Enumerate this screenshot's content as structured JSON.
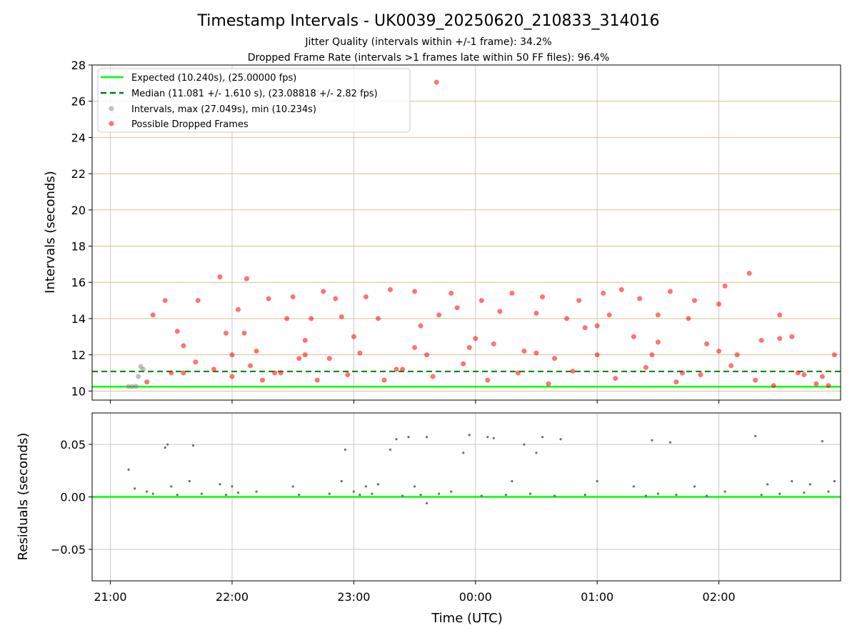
{
  "chart_data": [
    {
      "type": "scatter",
      "title": "Timestamp Intervals - UK0039_20250620_210833_314016",
      "subtitle_lines": [
        "Jitter Quality (intervals within +/-1 frame): 34.2%",
        "Dropped Frame Rate (intervals >1 frames late within 50 FF files): 96.4%"
      ],
      "xlabel": "",
      "ylabel": "Intervals (seconds)",
      "ylim": [
        9.5,
        28
      ],
      "yticks": [
        10,
        12,
        14,
        16,
        18,
        20,
        22,
        24,
        26,
        28
      ],
      "ytick_labels": [
        "10",
        "12",
        "14",
        "16",
        "18",
        "20",
        "22",
        "24",
        "26",
        "28"
      ],
      "x_unit": "hours since 21:00 UTC",
      "xlim": [
        -0.15,
        6.0
      ],
      "grid": true,
      "legend_position": "top-left",
      "legend": [
        "Expected (10.240s), (25.00000 fps)",
        "Median (11.081 +/- 1.610 s), (23.08818 +/- 2.82 fps)",
        "Intervals, max (27.049s), min (10.234s)",
        "Possible Dropped Frames"
      ],
      "reference_lines": {
        "expected": 10.24,
        "median": 11.081
      },
      "colors": {
        "expected": "#00ff00",
        "median": "#008000",
        "intervals": "#808080",
        "dropped": "#ff0000",
        "hgrid": "#d4c48a",
        "vgrid": "#c8c8c8"
      },
      "series": [
        {
          "name": "Intervals, max (27.049s), min (10.234s)",
          "x": [
            0.15,
            0.18,
            0.21,
            0.23,
            0.25,
            0.27
          ],
          "y": [
            10.25,
            10.25,
            10.26,
            10.8,
            11.35,
            11.2
          ]
        },
        {
          "name": "Possible Dropped Frames",
          "x": [
            0.35,
            0.45,
            0.55,
            0.6,
            0.72,
            0.9,
            0.95,
            1.0,
            1.05,
            1.12,
            1.2,
            1.3,
            1.35,
            1.45,
            1.5,
            1.6,
            1.65,
            1.75,
            1.8,
            1.85,
            1.9,
            2.05,
            2.1,
            2.2,
            2.3,
            2.35,
            2.5,
            2.55,
            2.6,
            2.7,
            2.8,
            2.85,
            2.95,
            3.05,
            3.15,
            3.2,
            3.3,
            3.4,
            3.5,
            3.55,
            3.65,
            3.75,
            3.85,
            3.9,
            4.0,
            4.05,
            4.1,
            4.2,
            4.3,
            4.35,
            4.45,
            4.5,
            4.6,
            4.7,
            4.75,
            4.8,
            4.9,
            5.0,
            5.05,
            5.15,
            5.25,
            5.35,
            5.5,
            5.6,
            5.7,
            5.85,
            5.95,
            0.3,
            0.5,
            0.7,
            0.85,
            1.0,
            1.15,
            1.25,
            1.4,
            1.55,
            1.7,
            1.95,
            2.25,
            2.4,
            2.65,
            2.9,
            3.1,
            3.35,
            3.6,
            3.8,
            4.15,
            4.4,
            4.65,
            4.85,
            5.1,
            5.3,
            5.45,
            5.65,
            5.8,
            5.9,
            0.6,
            1.1,
            1.6,
            2.0,
            2.5,
            3.0,
            3.5,
            4.0,
            4.5,
            5.0,
            5.5,
            2.68
          ],
          "y": [
            14.2,
            15.0,
            13.3,
            11.0,
            15.0,
            16.3,
            13.2,
            12.0,
            14.5,
            16.2,
            12.2,
            15.1,
            11.0,
            14.0,
            15.2,
            12.8,
            14.0,
            15.5,
            11.8,
            15.1,
            14.1,
            12.1,
            15.2,
            14.0,
            15.6,
            11.2,
            15.5,
            13.6,
            12.0,
            14.2,
            15.4,
            14.6,
            12.4,
            15.0,
            12.6,
            14.4,
            15.4,
            12.2,
            14.3,
            15.2,
            11.8,
            14.0,
            15.0,
            13.5,
            12.0,
            15.4,
            14.2,
            15.6,
            13.0,
            15.1,
            12.0,
            14.2,
            15.5,
            11.0,
            14.0,
            15.0,
            12.6,
            14.8,
            15.8,
            12.0,
            16.5,
            12.8,
            14.2,
            13.0,
            10.9,
            10.8,
            12.0,
            10.5,
            11.0,
            11.6,
            11.2,
            10.8,
            11.4,
            10.6,
            11.0,
            11.8,
            10.6,
            10.9,
            10.6,
            11.2,
            10.8,
            11.5,
            10.6,
            11.0,
            10.4,
            11.1,
            10.7,
            11.3,
            10.5,
            10.9,
            11.4,
            10.6,
            10.3,
            11.0,
            10.4,
            10.3,
            12.5,
            13.2,
            12.0,
            13.0,
            12.4,
            12.9,
            12.1,
            13.6,
            12.7,
            12.2,
            12.9,
            27.05
          ]
        }
      ]
    },
    {
      "type": "scatter",
      "title": "",
      "xlabel": "Time (UTC)",
      "ylabel": "Residuals (seconds)",
      "ylim": [
        -0.08,
        0.08
      ],
      "yticks": [
        -0.05,
        0.0,
        0.05
      ],
      "ytick_labels": [
        "−0.05",
        "0.00",
        "0.05"
      ],
      "x_unit": "hours since 21:00 UTC",
      "xlim": [
        -0.15,
        6.0
      ],
      "xticks": [
        0,
        1,
        2,
        3,
        4,
        5
      ],
      "xtick_labels": [
        "21:00",
        "22:00",
        "23:00",
        "00:00",
        "01:00",
        "02:00"
      ],
      "grid": true,
      "reference_lines": {
        "zero": 0.0
      },
      "series": [
        {
          "name": "",
          "x": [
            0.15,
            0.2,
            0.3,
            0.45,
            0.47,
            0.68,
            0.5,
            0.65,
            0.9,
            1.0,
            1.2,
            1.5,
            1.9,
            1.93,
            2.0,
            2.1,
            2.3,
            2.2,
            2.35,
            2.45,
            2.5,
            2.6,
            2.8,
            2.9,
            2.95,
            3.1,
            3.15,
            3.3,
            3.4,
            3.5,
            3.55,
            3.7,
            4.0,
            4.3,
            4.45,
            4.6,
            4.8,
            5.05,
            5.3,
            5.4,
            5.6,
            5.75,
            5.85,
            5.95,
            0.35,
            0.55,
            0.75,
            0.95,
            1.05,
            1.55,
            1.8,
            2.05,
            2.15,
            2.4,
            2.55,
            2.7,
            3.05,
            3.25,
            3.45,
            3.65,
            3.9,
            4.4,
            4.5,
            4.65,
            4.9,
            5.35,
            5.5,
            5.7,
            5.9,
            2.6
          ],
          "y": [
            0.026,
            0.008,
            0.005,
            0.047,
            0.05,
            0.049,
            0.01,
            0.015,
            0.012,
            0.01,
            0.005,
            0.01,
            0.015,
            0.045,
            0.005,
            0.01,
            0.045,
            0.012,
            0.055,
            0.057,
            0.01,
            0.057,
            0.005,
            0.042,
            0.059,
            0.057,
            0.056,
            0.015,
            0.05,
            0.042,
            0.057,
            0.055,
            0.015,
            0.01,
            0.054,
            0.052,
            0.01,
            0.005,
            0.058,
            0.012,
            0.015,
            0.012,
            0.053,
            0.015,
            0.003,
            0.002,
            0.003,
            0.002,
            0.004,
            0.002,
            0.003,
            0.002,
            0.003,
            0.001,
            0.002,
            0.003,
            0.001,
            0.002,
            0.003,
            0.001,
            0.002,
            0.001,
            0.003,
            0.002,
            0.001,
            0.002,
            0.003,
            0.004,
            0.005,
            -0.006
          ]
        }
      ]
    }
  ]
}
